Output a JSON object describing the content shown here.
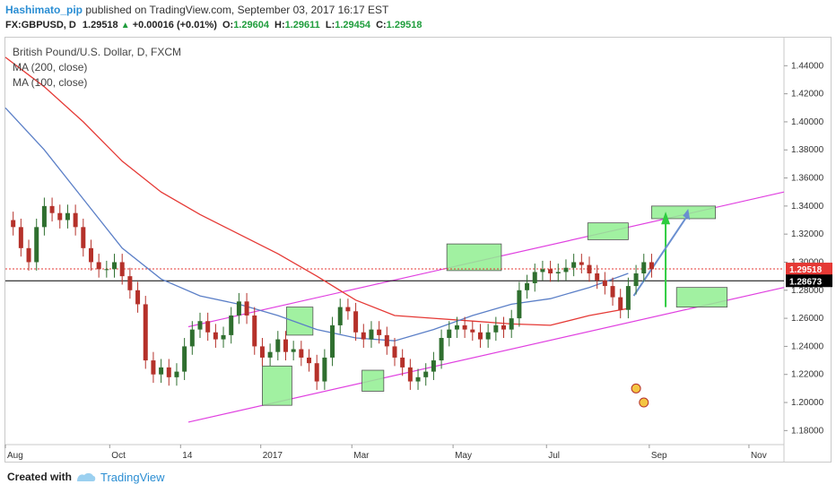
{
  "header": {
    "author": "Hashimato_pip",
    "published": "published on TradingView.com, September 03, 2017 16:17 EST",
    "symbol": "FX:GBPUSD, D",
    "last": "1.29518",
    "change": "+0.00016 (+0.01%)",
    "o_label": "O:",
    "o_value": "1.29604",
    "h_label": "H:",
    "h_value": "1.29611",
    "l_label": "L:",
    "l_value": "1.29454",
    "c_label": "C:",
    "c_value": "1.29518"
  },
  "legend": {
    "title": "British Pound/U.S. Dollar, D, FXCM",
    "ma200": "MA (200, close)",
    "ma100": "MA (100, close)"
  },
  "footer": {
    "created_with": "Created with",
    "brand": "TradingView"
  },
  "colors": {
    "ma200": "#e53935",
    "ma100": "#5b7fc7",
    "channel": "#e040e0",
    "box_fill": "#90ee90",
    "arrow_green": "#2ecc40",
    "arrow_blue": "#6a8fd0",
    "candle_up": "#2f6f2f",
    "candle_down": "#b5312a",
    "last_tag": "#e53935",
    "ref_tag": "#000000"
  },
  "chart_data": {
    "type": "line",
    "instrument": "GBPUSD",
    "timeframe": "D",
    "ylim": [
      1.17,
      1.46
    ],
    "ytick_labels": [
      "1.18000",
      "1.20000",
      "1.22000",
      "1.24000",
      "1.26000",
      "1.28000",
      "1.30000",
      "1.32000",
      "1.34000",
      "1.36000",
      "1.38000",
      "1.40000",
      "1.42000",
      "1.44000"
    ],
    "ytick_values": [
      1.18,
      1.2,
      1.22,
      1.24,
      1.26,
      1.28,
      1.3,
      1.32,
      1.34,
      1.36,
      1.38,
      1.4,
      1.42,
      1.44
    ],
    "xtick_labels": [
      "Aug",
      "Oct",
      "14",
      "2017",
      "Mar",
      "May",
      "Jul",
      "Sep",
      "Nov"
    ],
    "xtick_positions": [
      0.0,
      0.134,
      0.225,
      0.328,
      0.445,
      0.575,
      0.695,
      0.827,
      0.955
    ],
    "price_series": {
      "name": "price",
      "x": [
        0.0,
        0.01,
        0.02,
        0.03,
        0.04,
        0.05,
        0.06,
        0.07,
        0.08,
        0.09,
        0.1,
        0.11,
        0.12,
        0.13,
        0.14,
        0.15,
        0.16,
        0.17,
        0.18,
        0.19,
        0.2,
        0.21,
        0.22,
        0.23,
        0.24,
        0.25,
        0.26,
        0.27,
        0.28,
        0.29,
        0.3,
        0.31,
        0.32,
        0.33,
        0.34,
        0.35,
        0.36,
        0.37,
        0.38,
        0.39,
        0.4,
        0.41,
        0.42,
        0.43,
        0.44,
        0.45,
        0.46,
        0.47,
        0.48,
        0.49,
        0.5,
        0.51,
        0.52,
        0.53,
        0.54,
        0.55,
        0.56,
        0.57,
        0.58,
        0.59,
        0.6,
        0.61,
        0.62,
        0.63,
        0.64,
        0.65,
        0.66,
        0.67,
        0.68,
        0.69,
        0.7,
        0.71,
        0.72,
        0.73,
        0.74,
        0.75,
        0.76,
        0.77,
        0.78,
        0.79,
        0.8,
        0.81,
        0.82,
        0.83
      ],
      "values": [
        1.33,
        1.325,
        1.31,
        1.3,
        1.325,
        1.34,
        1.335,
        1.33,
        1.335,
        1.325,
        1.31,
        1.3,
        1.295,
        1.295,
        1.3,
        1.29,
        1.28,
        1.27,
        1.23,
        1.22,
        1.225,
        1.218,
        1.222,
        1.24,
        1.252,
        1.258,
        1.25,
        1.245,
        1.248,
        1.262,
        1.272,
        1.262,
        1.24,
        1.232,
        1.236,
        1.245,
        1.236,
        1.238,
        1.232,
        1.228,
        1.215,
        1.232,
        1.255,
        1.268,
        1.265,
        1.25,
        1.245,
        1.252,
        1.248,
        1.24,
        1.232,
        1.225,
        1.215,
        1.218,
        1.222,
        1.23,
        1.246,
        1.252,
        1.255,
        1.252,
        1.25,
        1.245,
        1.25,
        1.255,
        1.252,
        1.26,
        1.28,
        1.285,
        1.293,
        1.295,
        1.292,
        1.293,
        1.296,
        1.3,
        1.298,
        1.292,
        1.287,
        1.283,
        1.275,
        1.266,
        1.283,
        1.292,
        1.3,
        1.295
      ]
    },
    "ma200": {
      "name": "MA (200, close)",
      "x": [
        0.0,
        0.05,
        0.1,
        0.15,
        0.2,
        0.25,
        0.3,
        0.35,
        0.4,
        0.45,
        0.5,
        0.55,
        0.6,
        0.65,
        0.7,
        0.75,
        0.8
      ],
      "values": [
        1.446,
        1.425,
        1.4,
        1.372,
        1.35,
        1.334,
        1.32,
        1.306,
        1.29,
        1.273,
        1.262,
        1.26,
        1.258,
        1.256,
        1.255,
        1.262,
        1.267
      ]
    },
    "ma100": {
      "name": "MA (100, close)",
      "x": [
        0.0,
        0.05,
        0.1,
        0.15,
        0.2,
        0.25,
        0.3,
        0.35,
        0.4,
        0.45,
        0.5,
        0.55,
        0.6,
        0.65,
        0.7,
        0.75,
        0.8
      ],
      "values": [
        1.41,
        1.38,
        1.345,
        1.31,
        1.288,
        1.276,
        1.27,
        1.262,
        1.252,
        1.246,
        1.244,
        1.252,
        1.262,
        1.27,
        1.274,
        1.282,
        1.292
      ]
    },
    "last_price": "1.29518",
    "ref_price": "1.28673",
    "last_price_value": 1.29518,
    "ref_price_value": 1.28673
  }
}
